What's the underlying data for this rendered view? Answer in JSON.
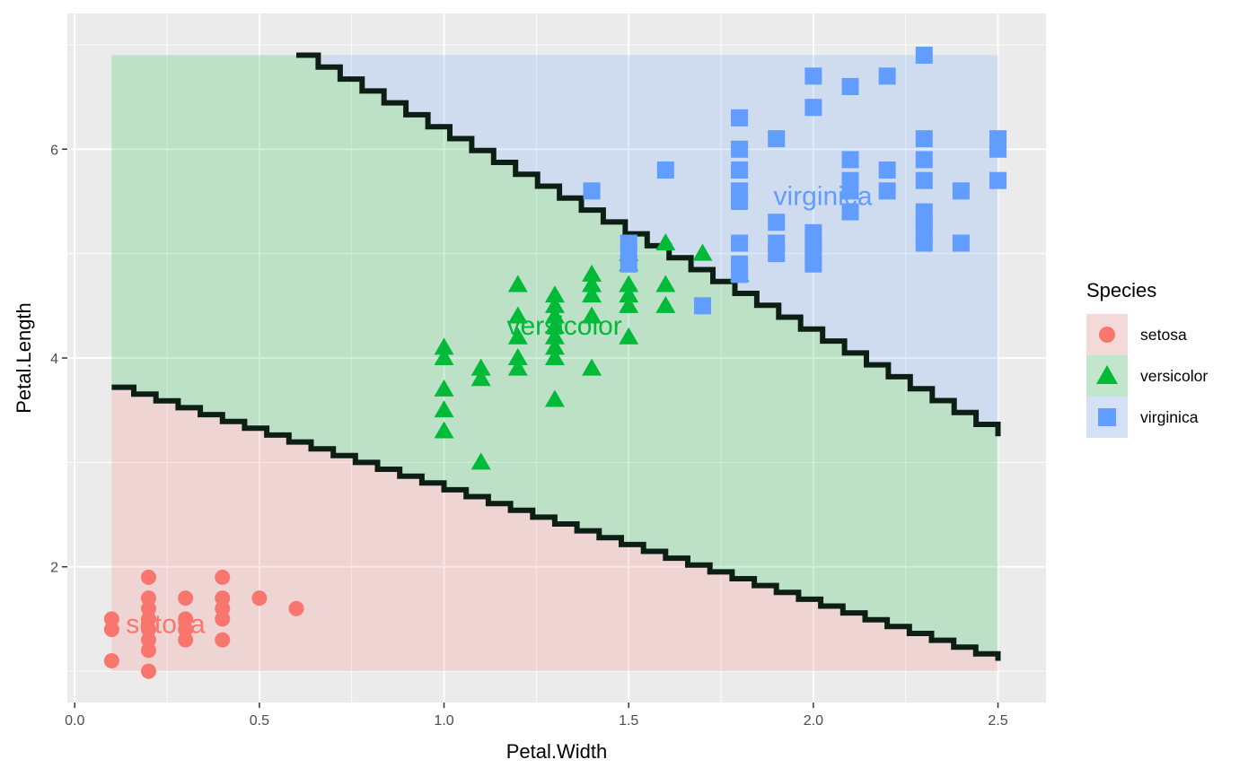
{
  "chart_data": {
    "type": "scatter",
    "title": "",
    "xlabel": "Petal.Width",
    "ylabel": "Petal.Length",
    "xlim": [
      -0.02,
      2.63
    ],
    "ylim": [
      0.7,
      7.3
    ],
    "x_ticks": [
      0.0,
      0.5,
      1.0,
      1.5,
      2.0,
      2.5
    ],
    "x_tick_labels": [
      "0.0",
      "0.5",
      "1.0",
      "1.5",
      "2.0",
      "2.5"
    ],
    "y_ticks": [
      2,
      4,
      6
    ],
    "y_tick_labels": [
      "2",
      "4",
      "6"
    ],
    "grid": true,
    "legend": {
      "title": "Species",
      "position": "right",
      "entries": [
        {
          "name": "setosa",
          "shape": "circle",
          "color": "#F8766D"
        },
        {
          "name": "versicolor",
          "shape": "triangle",
          "color": "#00BA38"
        },
        {
          "name": "virginica",
          "shape": "square",
          "color": "#619CFF"
        }
      ]
    },
    "regions": {
      "x_range": [
        0.1,
        2.5
      ],
      "y_range": [
        1.0,
        6.9
      ],
      "fill_colors": {
        "setosa": "#F8766D",
        "versicolor": "#00BA38",
        "virginica": "#619CFF"
      },
      "fill_opacity": 0.2
    },
    "decision_boundaries": [
      {
        "between": [
          "setosa",
          "versicolor"
        ],
        "from": [
          0.1,
          3.72
        ],
        "to": [
          2.5,
          1.1
        ]
      },
      {
        "between": [
          "versicolor",
          "virginica"
        ],
        "from": [
          0.6,
          6.9
        ],
        "to": [
          2.5,
          3.25
        ]
      }
    ],
    "class_labels": [
      {
        "text": "setosa",
        "x": 0.246,
        "y": 1.45,
        "color": "#F8766D"
      },
      {
        "text": "versicolor",
        "x": 1.326,
        "y": 4.31,
        "color": "#00BA38"
      },
      {
        "text": "virginica",
        "x": 2.026,
        "y": 5.55,
        "color": "#619CFF"
      }
    ],
    "series": [
      {
        "name": "setosa",
        "color": "#F8766D",
        "shape": "circle",
        "points": [
          [
            0.1,
            1.5
          ],
          [
            0.1,
            1.4
          ],
          [
            0.1,
            1.1
          ],
          [
            0.2,
            1.9
          ],
          [
            0.2,
            1.7
          ],
          [
            0.2,
            1.6
          ],
          [
            0.2,
            1.5
          ],
          [
            0.2,
            1.4
          ],
          [
            0.2,
            1.3
          ],
          [
            0.2,
            1.2
          ],
          [
            0.2,
            1.0
          ],
          [
            0.3,
            1.7
          ],
          [
            0.3,
            1.5
          ],
          [
            0.3,
            1.4
          ],
          [
            0.3,
            1.3
          ],
          [
            0.4,
            1.9
          ],
          [
            0.4,
            1.7
          ],
          [
            0.4,
            1.6
          ],
          [
            0.4,
            1.5
          ],
          [
            0.4,
            1.3
          ],
          [
            0.5,
            1.7
          ],
          [
            0.6,
            1.6
          ]
        ]
      },
      {
        "name": "versicolor",
        "color": "#00BA38",
        "shape": "triangle",
        "points": [
          [
            1.0,
            4.1
          ],
          [
            1.0,
            4.0
          ],
          [
            1.0,
            3.7
          ],
          [
            1.0,
            3.5
          ],
          [
            1.0,
            3.3
          ],
          [
            1.1,
            3.9
          ],
          [
            1.1,
            3.8
          ],
          [
            1.1,
            3.0
          ],
          [
            1.2,
            4.7
          ],
          [
            1.2,
            4.4
          ],
          [
            1.2,
            4.2
          ],
          [
            1.2,
            4.0
          ],
          [
            1.2,
            3.9
          ],
          [
            1.3,
            4.6
          ],
          [
            1.3,
            4.5
          ],
          [
            1.3,
            4.4
          ],
          [
            1.3,
            4.3
          ],
          [
            1.3,
            4.2
          ],
          [
            1.3,
            4.1
          ],
          [
            1.3,
            4.0
          ],
          [
            1.3,
            3.6
          ],
          [
            1.4,
            4.8
          ],
          [
            1.4,
            4.7
          ],
          [
            1.4,
            4.6
          ],
          [
            1.4,
            4.4
          ],
          [
            1.4,
            3.9
          ],
          [
            1.5,
            5.0
          ],
          [
            1.5,
            4.9
          ],
          [
            1.5,
            4.7
          ],
          [
            1.5,
            4.6
          ],
          [
            1.5,
            4.5
          ],
          [
            1.5,
            4.2
          ],
          [
            1.6,
            5.1
          ],
          [
            1.6,
            4.7
          ],
          [
            1.6,
            4.5
          ],
          [
            1.7,
            5.0
          ],
          [
            1.8,
            4.8
          ]
        ]
      },
      {
        "name": "virginica",
        "color": "#619CFF",
        "shape": "square",
        "points": [
          [
            1.4,
            5.6
          ],
          [
            1.5,
            5.1
          ],
          [
            1.5,
            5.0
          ],
          [
            1.5,
            4.9
          ],
          [
            1.6,
            5.8
          ],
          [
            1.7,
            4.5
          ],
          [
            1.8,
            6.3
          ],
          [
            1.8,
            6.0
          ],
          [
            1.8,
            5.8
          ],
          [
            1.8,
            5.6
          ],
          [
            1.8,
            5.5
          ],
          [
            1.8,
            5.1
          ],
          [
            1.8,
            4.9
          ],
          [
            1.8,
            4.8
          ],
          [
            1.9,
            6.1
          ],
          [
            1.9,
            5.3
          ],
          [
            1.9,
            5.1
          ],
          [
            1.9,
            5.0
          ],
          [
            2.0,
            6.7
          ],
          [
            2.0,
            6.4
          ],
          [
            2.0,
            5.2
          ],
          [
            2.0,
            5.1
          ],
          [
            2.0,
            5.0
          ],
          [
            2.0,
            4.9
          ],
          [
            2.1,
            6.6
          ],
          [
            2.1,
            5.9
          ],
          [
            2.1,
            5.7
          ],
          [
            2.1,
            5.6
          ],
          [
            2.1,
            5.4
          ],
          [
            2.2,
            6.7
          ],
          [
            2.2,
            5.8
          ],
          [
            2.2,
            5.6
          ],
          [
            2.3,
            6.9
          ],
          [
            2.3,
            6.1
          ],
          [
            2.3,
            5.9
          ],
          [
            2.3,
            5.7
          ],
          [
            2.3,
            5.4
          ],
          [
            2.3,
            5.3
          ],
          [
            2.3,
            5.2
          ],
          [
            2.3,
            5.1
          ],
          [
            2.4,
            5.6
          ],
          [
            2.4,
            5.1
          ],
          [
            2.5,
            6.1
          ],
          [
            2.5,
            6.0
          ],
          [
            2.5,
            5.7
          ]
        ]
      }
    ]
  }
}
